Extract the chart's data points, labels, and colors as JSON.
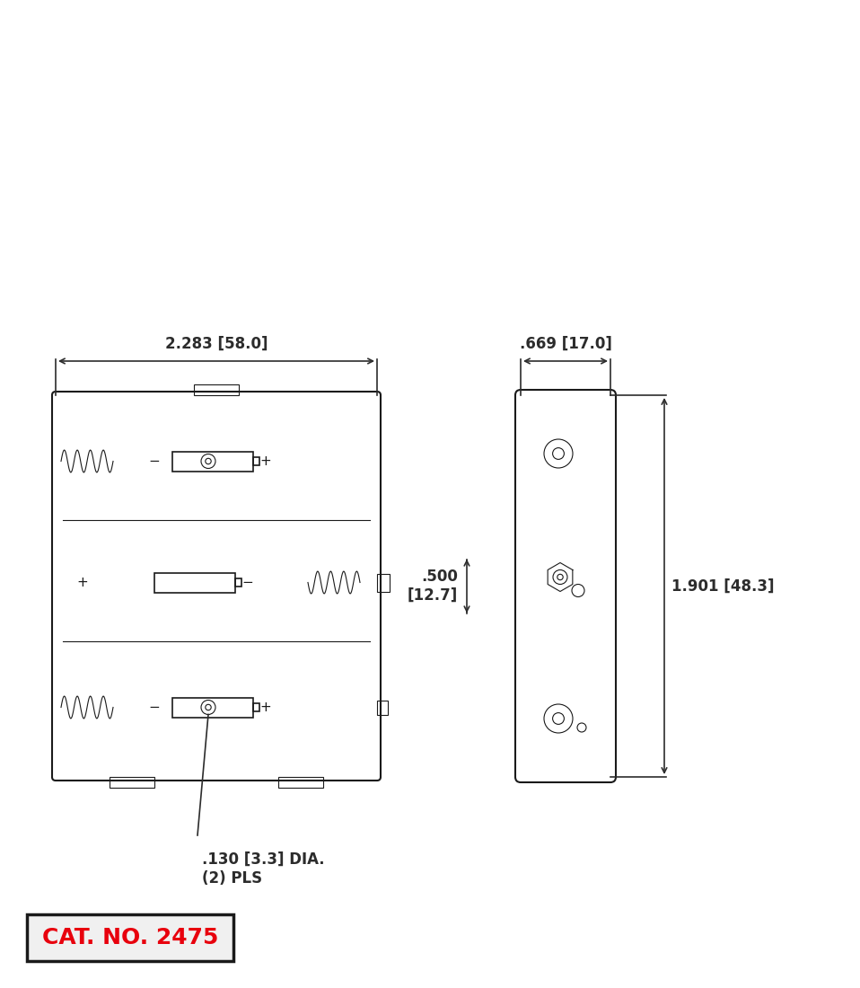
{
  "bg_color": "#ffffff",
  "dim_color": "#2c2c2c",
  "drawing_color": "#1a1a1a",
  "cat_text_color": "#e8000d",
  "cat_bg_color": "#f0f0f0",
  "cat_border_color": "#1a1a1a",
  "dim_width": "2.283 [58.0]",
  "dim_height": "1.901 [48.3]",
  "dim_side_width": ".669 [17.0]",
  "dim_center": ".500\n[12.7]",
  "dim_hole": ".130 [3.3] DIA.\n(2) PLS",
  "cat_no": "CAT. NO. 2475",
  "photo_placeholder": true
}
